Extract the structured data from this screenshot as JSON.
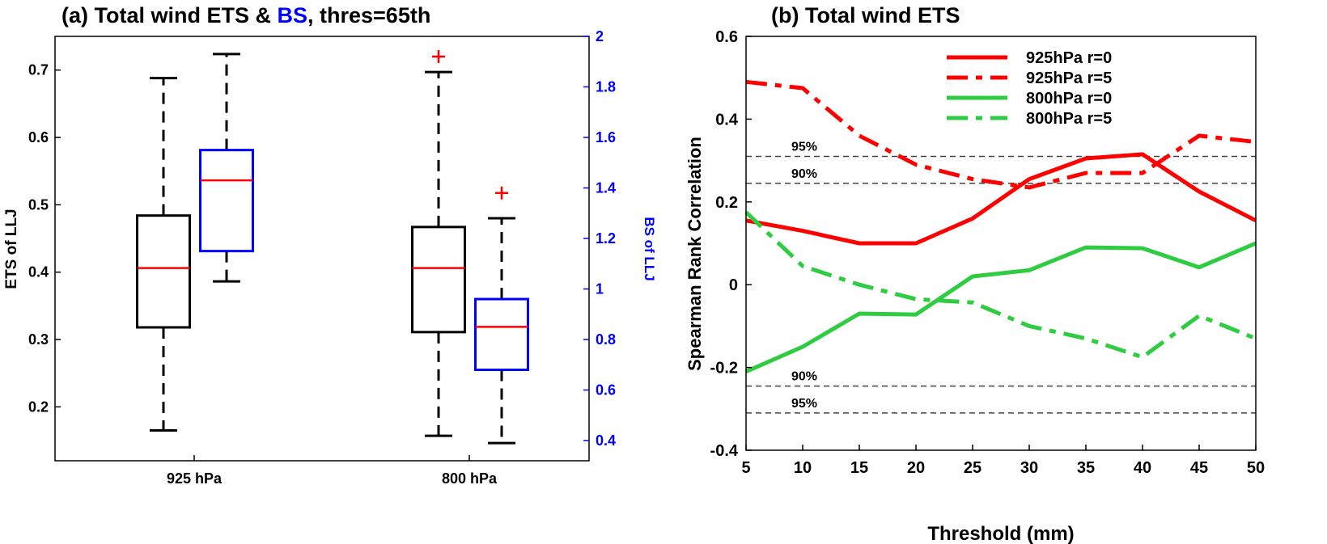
{
  "chart_data": [
    {
      "type": "boxplot",
      "title_prefix": "(a) Total wind ETS & ",
      "title_highlight": "BS",
      "title_suffix": ", thres=65th",
      "xlabel": "",
      "ylabel": "ETS of LLJ",
      "y2label": "BS of LLJ",
      "ylim": [
        0.12,
        0.75
      ],
      "y2lim": [
        0.32,
        2.0
      ],
      "categories": [
        "925 hPa",
        "800 hPa"
      ],
      "yticks": [
        0.2,
        0.3,
        0.4,
        0.5,
        0.6,
        0.7
      ],
      "y2ticks": [
        0.4,
        0.6,
        0.8,
        1,
        1.2,
        1.4,
        1.6,
        1.8,
        2
      ],
      "colors": {
        "ets": "#000000",
        "bs": "#0000ff",
        "median": "#ff0000",
        "outlier": "#ff0000",
        "accent": "#0000ff"
      },
      "series": [
        {
          "axis": "left",
          "boxes": [
            {
              "category": "925 hPa",
              "whisker_low": 0.165,
              "q1": 0.318,
              "median": 0.406,
              "q3": 0.484,
              "whisker_high": 0.688,
              "outliers": []
            },
            {
              "category": "800 hPa",
              "whisker_low": 0.157,
              "q1": 0.311,
              "median": 0.406,
              "q3": 0.467,
              "whisker_high": 0.697,
              "outliers": [
                0.72
              ]
            }
          ]
        },
        {
          "axis": "right",
          "boxes": [
            {
              "category": "925 hPa",
              "whisker_low": 1.03,
              "q1": 1.15,
              "median": 1.43,
              "q3": 1.55,
              "whisker_high": 1.93,
              "outliers": []
            },
            {
              "category": "800 hPa",
              "whisker_low": 0.39,
              "q1": 0.68,
              "median": 0.85,
              "q3": 0.96,
              "whisker_high": 1.28,
              "outliers": [
                1.38
              ]
            }
          ]
        }
      ]
    },
    {
      "type": "line",
      "title": "(b) Total wind ETS",
      "xlabel": "Threshold (mm)",
      "ylabel": "Spearman Rank Correlation",
      "xlim": [
        5,
        50
      ],
      "ylim": [
        -0.4,
        0.6
      ],
      "xticks": [
        5,
        10,
        15,
        20,
        25,
        30,
        35,
        40,
        45,
        50
      ],
      "yticks": [
        -0.4,
        -0.2,
        0,
        0.2,
        0.4,
        0.6
      ],
      "x": [
        5,
        10,
        15,
        20,
        25,
        30,
        35,
        40,
        45,
        50
      ],
      "legend_position": "top-right",
      "series": [
        {
          "name": "925hPa r=0",
          "color": "#ff0000",
          "style": "solid",
          "values": [
            0.155,
            0.13,
            0.1,
            0.1,
            0.16,
            0.255,
            0.305,
            0.315,
            0.225,
            0.155
          ]
        },
        {
          "name": "925hPa r=5",
          "color": "#ff0000",
          "style": "dashdot",
          "values": [
            0.49,
            0.475,
            0.36,
            0.29,
            0.255,
            0.235,
            0.27,
            0.27,
            0.36,
            0.345
          ]
        },
        {
          "name": "800hPa r=0",
          "color": "#2ecc40",
          "style": "solid",
          "values": [
            -0.21,
            -0.15,
            -0.07,
            -0.072,
            0.02,
            0.035,
            0.09,
            0.088,
            0.042,
            0.1
          ]
        },
        {
          "name": "800hPa r=5",
          "color": "#2ecc40",
          "style": "dashdot",
          "values": [
            0.175,
            0.045,
            0.0,
            -0.035,
            -0.043,
            -0.1,
            -0.13,
            -0.175,
            -0.075,
            -0.13
          ]
        }
      ],
      "reference_lines": [
        {
          "label": "95%",
          "value": 0.31
        },
        {
          "label": "90%",
          "value": 0.245
        },
        {
          "label": "90%",
          "value": -0.245
        },
        {
          "label": "95%",
          "value": -0.31
        }
      ]
    }
  ]
}
